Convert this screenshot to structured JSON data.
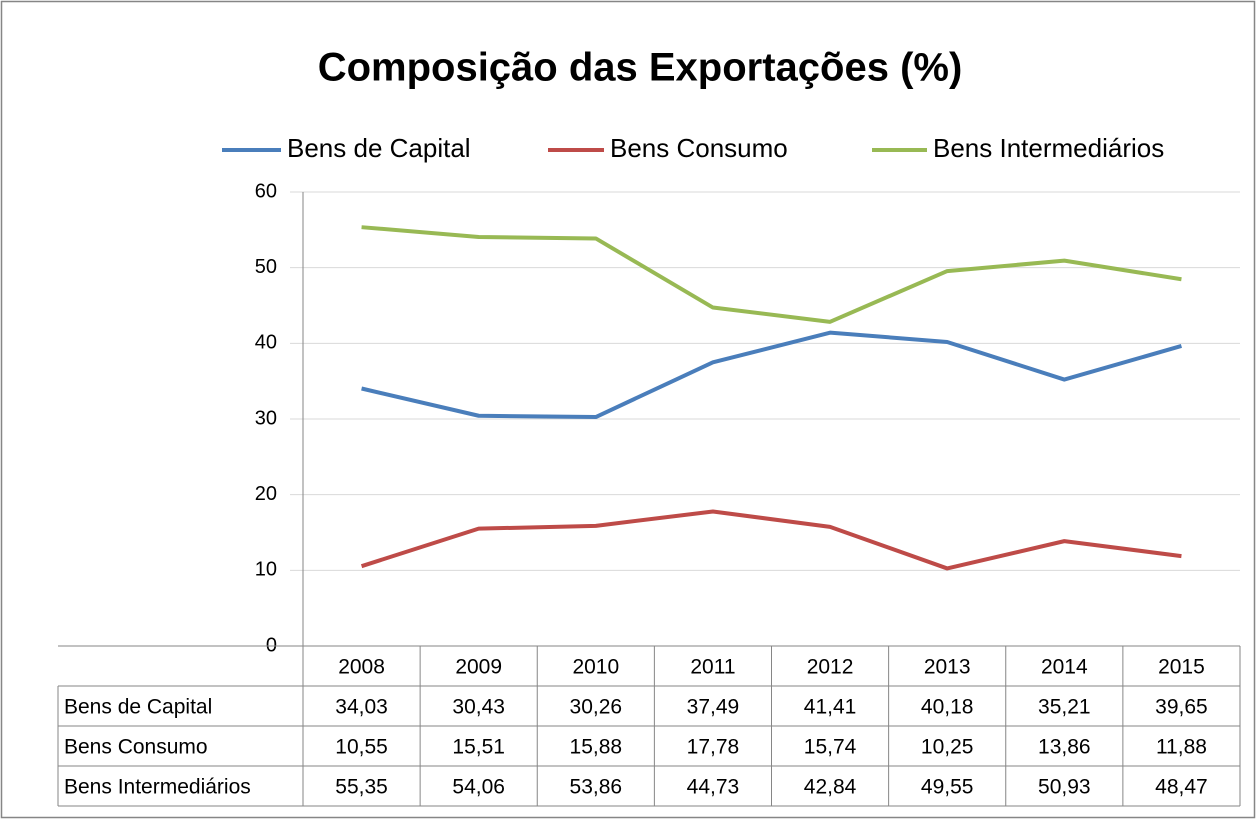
{
  "chart_data": {
    "type": "line",
    "title": "Composição das Exportações (%)",
    "categories": [
      "2008",
      "2009",
      "2010",
      "2011",
      "2012",
      "2013",
      "2014",
      "2015"
    ],
    "series": [
      {
        "name": "Bens de Capital",
        "color": "#4a7ebb",
        "values": [
          34.03,
          30.43,
          30.26,
          37.49,
          41.41,
          40.18,
          35.21,
          39.65
        ],
        "value_labels": [
          "34,03",
          "30,43",
          "30,26",
          "37,49",
          "41,41",
          "40,18",
          "35,21",
          "39,65"
        ]
      },
      {
        "name": "Bens Consumo",
        "color": "#be4b48",
        "values": [
          10.55,
          15.51,
          15.88,
          17.78,
          15.74,
          10.25,
          13.86,
          11.88
        ],
        "value_labels": [
          "10,55",
          "15,51",
          "15,88",
          "17,78",
          "15,74",
          "10,25",
          "13,86",
          "11,88"
        ]
      },
      {
        "name": "Bens Intermediários",
        "color": "#98b954",
        "values": [
          55.35,
          54.06,
          53.86,
          44.73,
          42.84,
          49.55,
          50.93,
          48.47
        ],
        "value_labels": [
          "55,35",
          "54,06",
          "53,86",
          "44,73",
          "42,84",
          "49,55",
          "50,93",
          "48,47"
        ]
      }
    ],
    "ylim": [
      0,
      60
    ],
    "yticks": [
      0,
      10,
      20,
      30,
      40,
      50,
      60
    ],
    "grid": true,
    "legend": "top"
  }
}
